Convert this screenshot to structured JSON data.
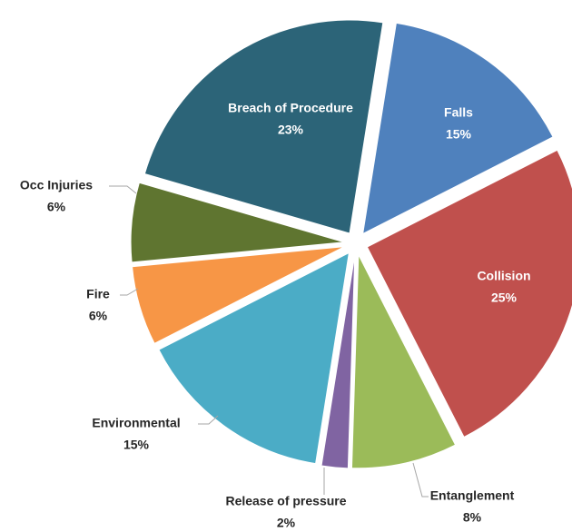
{
  "chart_data": {
    "type": "pie",
    "categories": [
      "Falls",
      "Collision",
      "Entanglement",
      "Release of pressure",
      "Environmental",
      "Fire",
      "Occ Injuries",
      "Breach of Procedure"
    ],
    "values": [
      15,
      25,
      8,
      2,
      15,
      6,
      6,
      23
    ],
    "value_labels": [
      "15%",
      "25%",
      "8%",
      "2%",
      "15%",
      "6%",
      "6%",
      "23%"
    ],
    "colors": [
      "#4f81bd",
      "#c0504d",
      "#9bbb59",
      "#8064a2",
      "#4bacc6",
      "#f79646",
      "#5f7530",
      "#2c6478"
    ]
  }
}
